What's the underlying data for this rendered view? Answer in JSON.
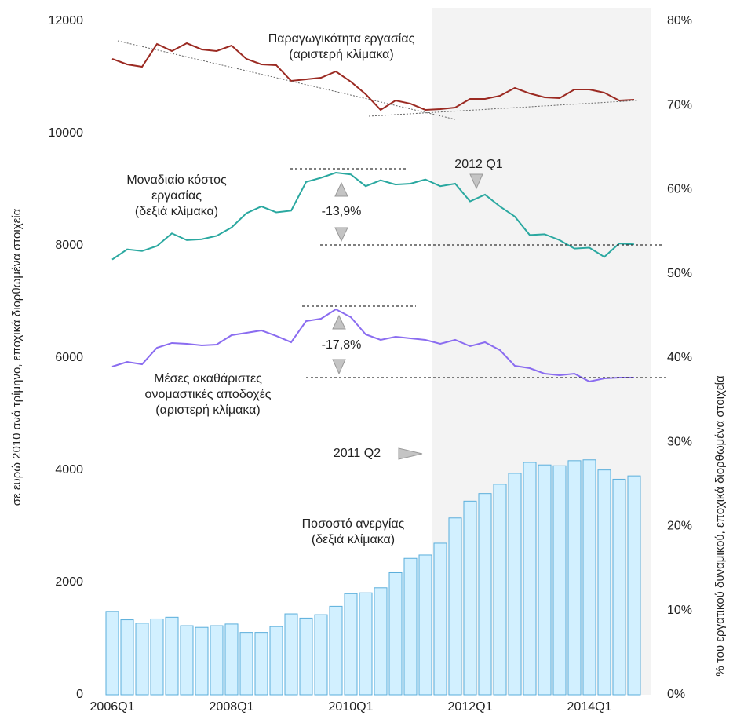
{
  "chart_data": {
    "type": "bar",
    "y_label": "σε ευρώ 2010 ανά τρίμηνο, εποχικά διορθωμένα στοιχεία",
    "y2_label": "% του εργατικού δυναμικού, εποχικά διορθωμένα στοιχεία",
    "categories": [
      "2006Q1",
      null,
      null,
      null,
      null,
      null,
      null,
      null,
      "2008Q1",
      null,
      null,
      null,
      null,
      null,
      null,
      null,
      "2010Q1",
      null,
      null,
      null,
      null,
      null,
      null,
      null,
      "2012Q1",
      null,
      null,
      null,
      null,
      null,
      null,
      null,
      "2014Q1",
      null,
      null,
      null
    ],
    "ylim": [
      0,
      12000
    ],
    "yticks": [
      0,
      2000,
      4000,
      6000,
      8000,
      10000,
      12000
    ],
    "y2lim": [
      0,
      80
    ],
    "y2ticks": [
      {
        "value": 0,
        "label": "0%"
      },
      {
        "value": 10,
        "label": "10%"
      },
      {
        "value": 20,
        "label": "20%"
      },
      {
        "value": 30,
        "label": "30%"
      },
      {
        "value": 40,
        "label": "40%"
      },
      {
        "value": 50,
        "label": "50%"
      },
      {
        "value": 60,
        "label": "60%"
      },
      {
        "value": 70,
        "label": "70%"
      },
      {
        "value": 80,
        "label": "80%"
      }
    ],
    "series": [
      {
        "name": "Ποσοστό ανεργίας\n(δεξιά κλίμακα)",
        "type": "bar",
        "axis": "y2",
        "color": "#d2f0ff",
        "values": [
          9.9,
          8.9,
          8.5,
          9.0,
          9.2,
          8.2,
          8.0,
          8.2,
          8.4,
          7.4,
          7.4,
          8.1,
          9.6,
          9.1,
          9.5,
          10.5,
          12.0,
          12.1,
          12.7,
          14.5,
          16.2,
          16.6,
          18.0,
          21.0,
          23.0,
          23.9,
          25.0,
          26.3,
          27.6,
          27.3,
          27.2,
          27.8,
          27.9,
          26.7,
          25.6,
          26.0
        ]
      },
      {
        "name": "Παραγωγικότητα εργασίας\n(αριστερή κλίμακα)",
        "type": "line",
        "axis": "y",
        "color": "#9b2a22",
        "values": [
          11329,
          11231,
          11189,
          11594,
          11469,
          11608,
          11497,
          11469,
          11566,
          11329,
          11231,
          11217,
          10937,
          10965,
          10993,
          11105,
          10923,
          10699,
          10420,
          10587,
          10531,
          10420,
          10434,
          10462,
          10615,
          10615,
          10671,
          10811,
          10713,
          10643,
          10629,
          10783,
          10783,
          10727,
          10587,
          10601
        ]
      },
      {
        "name": "Μοναδιαίο κόστος\nεργασίας\n(δεξιά κλίμακα)",
        "type": "line",
        "axis": "y2",
        "color": "#2aa8a0",
        "values": [
          51.7,
          52.9,
          52.7,
          53.3,
          54.8,
          54.0,
          54.1,
          54.5,
          55.5,
          57.2,
          58.0,
          57.3,
          57.5,
          60.9,
          61.4,
          62.0,
          61.8,
          60.4,
          61.1,
          60.6,
          60.7,
          61.2,
          60.4,
          60.7,
          58.6,
          59.4,
          58.0,
          56.8,
          54.6,
          54.7,
          54.0,
          53.0,
          53.1,
          52.0,
          53.6,
          53.5
        ]
      },
      {
        "name": "Μέσες ακαθάριστες\nονομαστικές αποδοχές\n(αριστερή κλίμακα)",
        "type": "line",
        "axis": "y",
        "color": "#8a6cf0",
        "values": [
          5846,
          5930,
          5888,
          6182,
          6266,
          6252,
          6224,
          6238,
          6406,
          6448,
          6490,
          6392,
          6280,
          6657,
          6699,
          6867,
          6727,
          6420,
          6322,
          6378,
          6350,
          6322,
          6252,
          6322,
          6210,
          6280,
          6140,
          5860,
          5818,
          5720,
          5692,
          5720,
          5580,
          5636,
          5650,
          5650
        ]
      }
    ],
    "annotations": [
      "2012 Q1",
      "-13,9%",
      "-17,8%",
      "2011 Q2"
    ]
  }
}
